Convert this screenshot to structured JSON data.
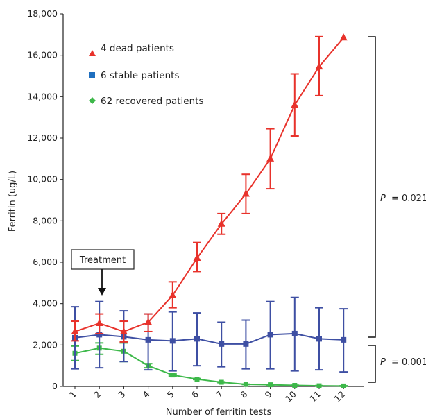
{
  "chart_data": {
    "type": "line",
    "title": "",
    "xlabel": "Number of ferritin tests",
    "ylabel": "Ferritin (ug/L)",
    "x": [
      1,
      2,
      3,
      4,
      5,
      6,
      7,
      8,
      9,
      10,
      11,
      12
    ],
    "x_tick_labels": [
      "1",
      "2",
      "3",
      "4",
      "5",
      "6",
      "7",
      "8",
      "9",
      "10",
      "11",
      "12"
    ],
    "ylim": [
      0,
      18000
    ],
    "y_ticks": [
      0,
      2000,
      4000,
      6000,
      8000,
      10000,
      12000,
      14000,
      16000,
      18000
    ],
    "y_tick_labels": [
      "0",
      "2,000",
      "4,000",
      "6,000",
      "8,000",
      "10,000",
      "12,000",
      "14,000",
      "16,000",
      "18,000"
    ],
    "grid": false,
    "legend_position": "top-left",
    "series": [
      {
        "name": "4 dead patients",
        "color": "#e8322b",
        "marker": "triangle",
        "values": [
          2650,
          3050,
          2650,
          3100,
          4400,
          6200,
          7850,
          9300,
          11000,
          13600,
          15450,
          16850
        ],
        "error_low": [
          2200,
          2550,
          2150,
          2650,
          3800,
          5550,
          7350,
          8350,
          9550,
          12100,
          14050,
          16850
        ],
        "error_high": [
          3150,
          3500,
          3150,
          3500,
          5050,
          6950,
          8350,
          10250,
          12450,
          15100,
          16900,
          16850
        ]
      },
      {
        "name": "6 stable patients",
        "color": "#3e4fa3",
        "marker": "square",
        "values": [
          2350,
          2500,
          2400,
          2250,
          2200,
          2300,
          2050,
          2050,
          2500,
          2550,
          2300,
          2250
        ],
        "error_low": [
          850,
          900,
          1200,
          800,
          750,
          1000,
          950,
          850,
          850,
          750,
          800,
          700
        ],
        "error_high": [
          3850,
          4100,
          3650,
          3500,
          3600,
          3550,
          3100,
          3200,
          4100,
          4300,
          3800,
          3750
        ]
      },
      {
        "name": "62 recovered patients",
        "color": "#3db84a",
        "marker": "diamond",
        "values": [
          1600,
          1850,
          1700,
          1000,
          550,
          350,
          200,
          100,
          80,
          50,
          30,
          20
        ],
        "error_low": [
          1250,
          1550,
          1200,
          900,
          500,
          330,
          180,
          90,
          70,
          40,
          20,
          10
        ],
        "error_high": [
          1950,
          2100,
          2100,
          1100,
          600,
          380,
          220,
          110,
          90,
          60,
          40,
          30
        ]
      }
    ],
    "annotations": {
      "treatment_label": "Treatment",
      "treatment_at_x": 2,
      "p_dead_vs_stable": "= 0.021",
      "p_stable_vs_recovered": "= 0.001",
      "p_symbol": "P"
    }
  }
}
